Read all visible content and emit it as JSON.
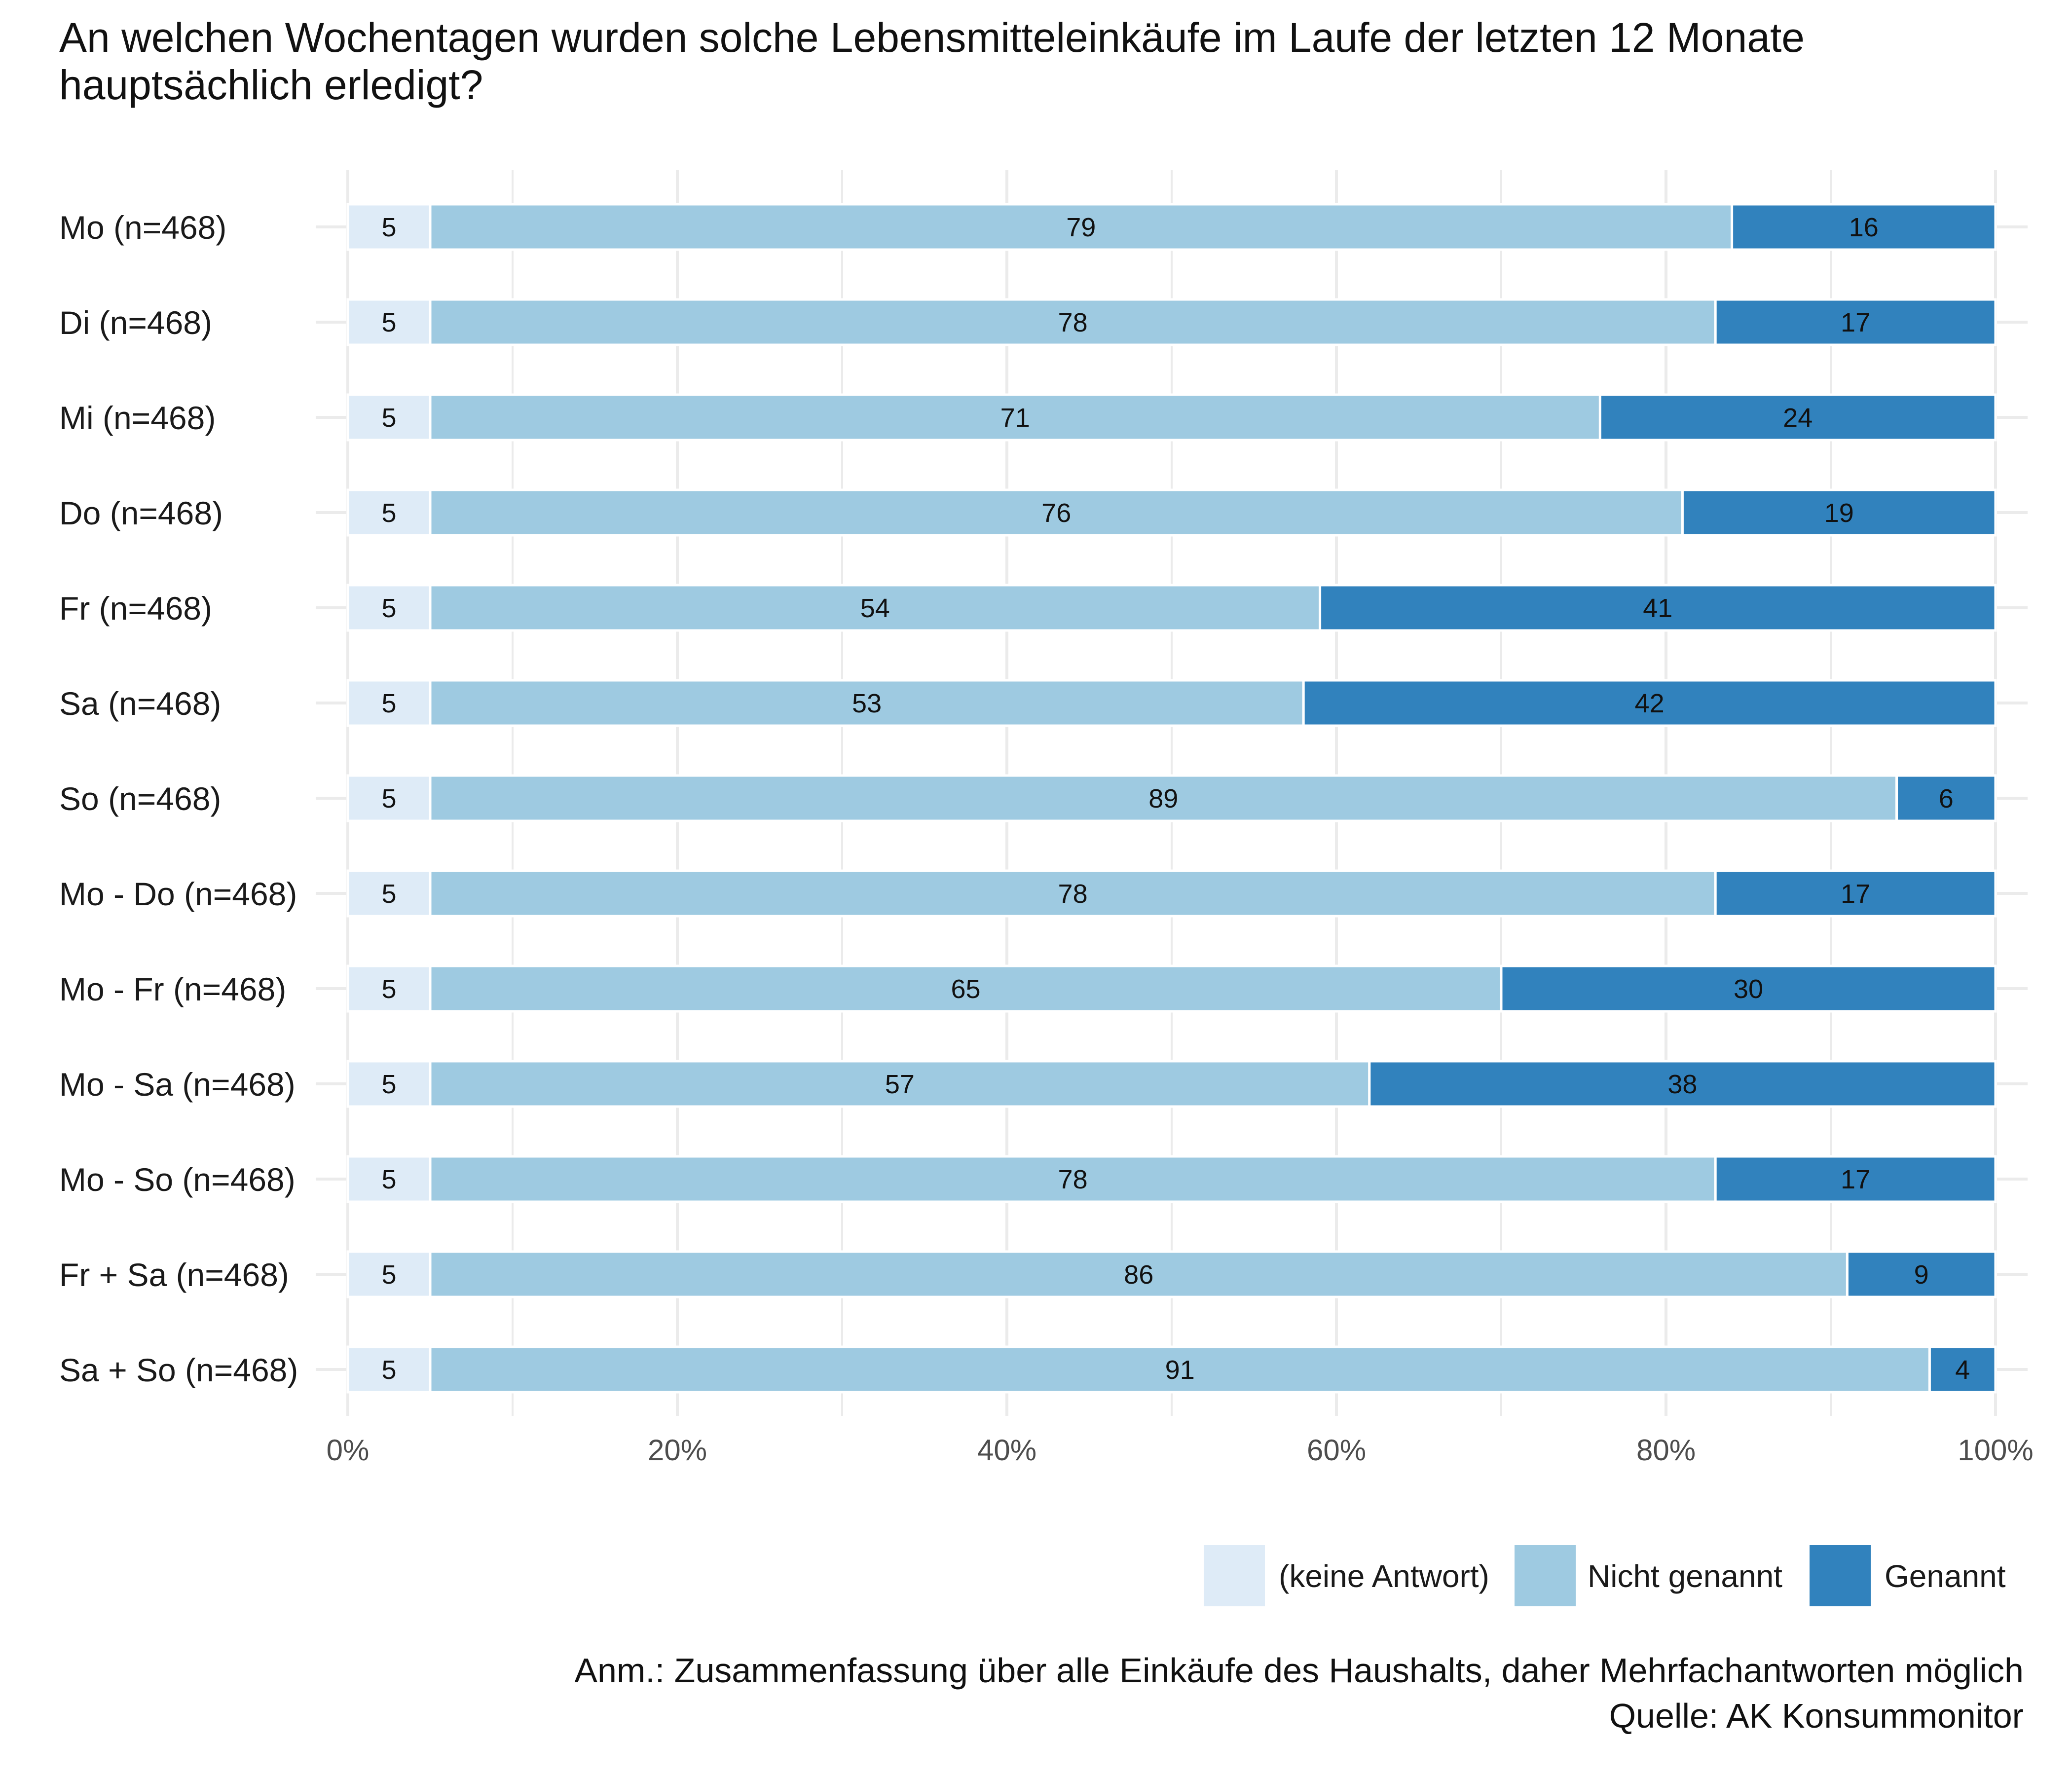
{
  "chart_data": {
    "type": "bar",
    "orientation": "horizontal",
    "stacked": true,
    "percent": true,
    "title": "An welchen Wochentagen wurden solche Lebensmitteleinkäufe im Laufe der letzten 12 Monate hauptsächlich erledigt?",
    "categories": [
      "Mo (n=468)",
      "Di (n=468)",
      "Mi (n=468)",
      "Do (n=468)",
      "Fr (n=468)",
      "Sa (n=468)",
      "So (n=468)",
      "Mo - Do (n=468)",
      "Mo - Fr (n=468)",
      "Mo - Sa (n=468)",
      "Mo - So (n=468)",
      "Fr + Sa (n=468)",
      "Sa + So (n=468)"
    ],
    "series": [
      {
        "name": "(keine Antwort)",
        "color": "#deebf7",
        "values": [
          5,
          5,
          5,
          5,
          5,
          5,
          5,
          5,
          5,
          5,
          5,
          5,
          5
        ]
      },
      {
        "name": "Nicht genannt",
        "color": "#9ecae1",
        "values": [
          79,
          78,
          71,
          76,
          54,
          53,
          89,
          78,
          65,
          57,
          78,
          86,
          91
        ]
      },
      {
        "name": "Genannt",
        "color": "#3182bd",
        "values": [
          16,
          17,
          24,
          19,
          41,
          42,
          6,
          17,
          30,
          38,
          17,
          9,
          4
        ]
      }
    ],
    "xlim": [
      0,
      100
    ],
    "xticks": [
      "0%",
      "20%",
      "40%",
      "60%",
      "80%",
      "100%"
    ],
    "xlabel": "",
    "ylabel": "",
    "grid": true,
    "legend_position": "bottom-right"
  },
  "footer": {
    "note": "Anm.: Zusammenfassung über alle Einkäufe des Haushalts, daher Mehrfachantworten möglich",
    "source": "Quelle: AK Konsummonitor"
  }
}
